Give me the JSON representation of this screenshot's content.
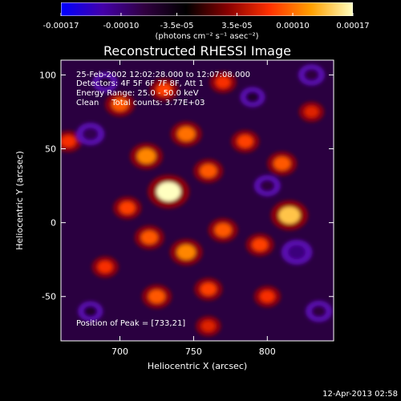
{
  "chart_data": {
    "type": "heatmap",
    "title": "Reconstructed RHESSI Image",
    "xlabel": "Heliocentric X (arcsec)",
    "ylabel": "Heliocentric Y (arcsec)",
    "xlim": [
      660,
      845
    ],
    "ylim": [
      -80,
      110
    ],
    "xticks": [
      700,
      750,
      800
    ],
    "yticks": [
      -50,
      0,
      50,
      100
    ],
    "colorbar": {
      "label": "(photons cm⁻² s⁻¹ asec⁻²)",
      "range": [
        -0.00017,
        0.00017
      ],
      "tick_labels": [
        "-0.00017",
        "-0.00010",
        "-3.5e-05",
        "3.5e-05",
        "0.00010",
        "0.00017"
      ],
      "tick_values": [
        -0.00017,
        -0.0001,
        -3.5e-05,
        3.5e-05,
        0.0001,
        0.00017
      ],
      "colors": [
        "#0000ff",
        "#4400aa",
        "#300040",
        "#000000",
        "#880000",
        "#ff3000",
        "#ffa000",
        "#ffffc0"
      ]
    },
    "annotations": {
      "time": "25-Feb-2002 12:02:28.000 to 12:07:08.000",
      "detectors": "Detectors: 4F 5F 6F 7F 8F, Att 1",
      "energy": "Energy Range: 25.0 - 50.0 keV",
      "method": "Clean     Total counts: 3.77E+03",
      "peak": "Position of Peak = [733,21]"
    },
    "sources": [
      {
        "x": 733,
        "y": 21,
        "value": 0.00017
      },
      {
        "x": 718,
        "y": 45,
        "value": 0.00011
      },
      {
        "x": 745,
        "y": 60,
        "value": 0.0001
      },
      {
        "x": 760,
        "y": 35,
        "value": 9e-05
      },
      {
        "x": 785,
        "y": 55,
        "value": 8e-05
      },
      {
        "x": 810,
        "y": 40,
        "value": 9e-05
      },
      {
        "x": 815,
        "y": 5,
        "value": 0.00014
      },
      {
        "x": 795,
        "y": -15,
        "value": 8e-05
      },
      {
        "x": 770,
        "y": -5,
        "value": 9e-05
      },
      {
        "x": 745,
        "y": -20,
        "value": 0.00011
      },
      {
        "x": 720,
        "y": -10,
        "value": 9e-05
      },
      {
        "x": 705,
        "y": 10,
        "value": 8e-05
      },
      {
        "x": 700,
        "y": 80,
        "value": 9e-05
      },
      {
        "x": 730,
        "y": 90,
        "value": 8e-05
      },
      {
        "x": 770,
        "y": 95,
        "value": 7e-05
      },
      {
        "x": 690,
        "y": -30,
        "value": 7e-05
      },
      {
        "x": 725,
        "y": -50,
        "value": 9e-05
      },
      {
        "x": 760,
        "y": -45,
        "value": 8e-05
      },
      {
        "x": 800,
        "y": -50,
        "value": 7e-05
      },
      {
        "x": 760,
        "y": -70,
        "value": 6e-05
      },
      {
        "x": 830,
        "y": 75,
        "value": 6e-05
      },
      {
        "x": 665,
        "y": 55,
        "value": 7e-05
      },
      {
        "x": 790,
        "y": 85,
        "value": -6e-05
      },
      {
        "x": 680,
        "y": 60,
        "value": -8e-05
      },
      {
        "x": 820,
        "y": -20,
        "value": -0.0001
      },
      {
        "x": 800,
        "y": 25,
        "value": -7e-05
      },
      {
        "x": 690,
        "y": 95,
        "value": -6e-05
      },
      {
        "x": 830,
        "y": 100,
        "value": -7e-05
      },
      {
        "x": 680,
        "y": -60,
        "value": -6e-05
      },
      {
        "x": 835,
        "y": -60,
        "value": -7e-05
      }
    ]
  },
  "timestamp": "12-Apr-2013 02:58"
}
